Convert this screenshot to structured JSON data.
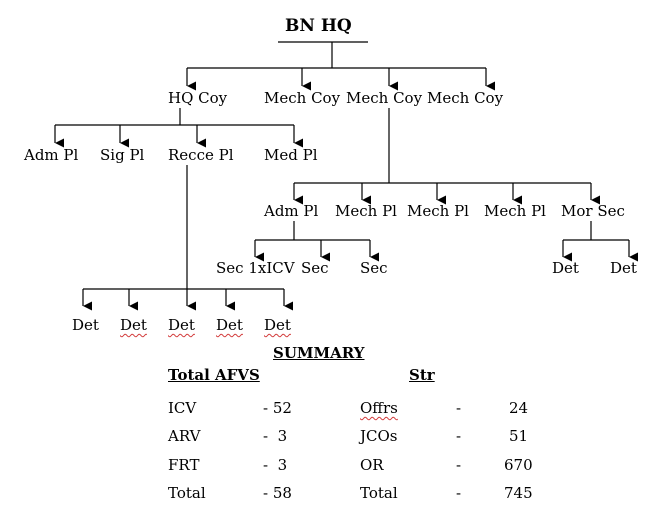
{
  "hq": "BN HQ",
  "level1": [
    "HQ Coy",
    "Mech Coy",
    "Mech Coy",
    "Mech Coy"
  ],
  "hq_coy_pls": [
    "Adm Pl",
    "Sig Pl",
    "Recce Pl",
    "Med Pl"
  ],
  "mech_coy_pls": [
    "Adm Pl",
    "Mech Pl",
    "Mech Pl",
    "Mech Pl",
    "Mor Sec"
  ],
  "adm_pl_secs": [
    "Sec 1xICV",
    "Sec",
    "Sec"
  ],
  "mor_sec_dets": [
    "Det",
    "Det"
  ],
  "recce_dets": [
    "Det",
    "Det",
    "Det",
    "Det",
    "Det"
  ],
  "summary": {
    "title": "SUMMARY",
    "afvs_header": "Total AFVS",
    "str_header": "Str",
    "afvs": [
      {
        "label": "ICV",
        "value": "- 52"
      },
      {
        "label": "ARV",
        "value": "-  3"
      },
      {
        "label": "FRT",
        "value": "-  3"
      },
      {
        "label": "Total",
        "value": "- 58"
      }
    ],
    "str": [
      {
        "label": "Offrs",
        "dash": "-",
        "value": "24"
      },
      {
        "label": "JCOs",
        "dash": "-",
        "value": "51"
      },
      {
        "label": "OR",
        "dash": "-",
        "value": "670"
      },
      {
        "label": "Total",
        "dash": "-",
        "value": "745"
      }
    ]
  }
}
